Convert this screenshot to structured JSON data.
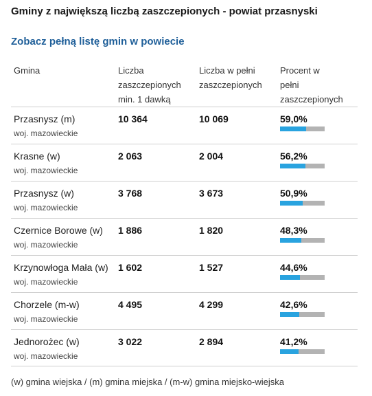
{
  "title": "Gminy z największą liczbą zaszczepionych - powiat przasnyski",
  "link_text": "Zobacz pełną listę gmin w powiecie",
  "columns": {
    "gmina": "Gmina",
    "dose1": [
      "Liczba",
      "zaszczepionych",
      "min. 1 dawką"
    ],
    "full": [
      "Liczba w pełni",
      "zaszczepionych"
    ],
    "percent": [
      "Procent w",
      "pełni",
      "zaszczepionych"
    ]
  },
  "colors": {
    "bar_fill": "#29a3df",
    "bar_track": "#b3b3b3",
    "link": "#1f5f99"
  },
  "rows": [
    {
      "name": "Przasnysz (m)",
      "woj": "woj. mazowieckie",
      "dose1": "10 364",
      "full": "10 069",
      "percent": "59,0%",
      "fraction": 0.59
    },
    {
      "name": "Krasne (w)",
      "woj": "woj. mazowieckie",
      "dose1": "2 063",
      "full": "2 004",
      "percent": "56,2%",
      "fraction": 0.562
    },
    {
      "name": "Przasnysz (w)",
      "woj": "woj. mazowieckie",
      "dose1": "3 768",
      "full": "3 673",
      "percent": "50,9%",
      "fraction": 0.509
    },
    {
      "name": "Czernice Borowe (w)",
      "woj": "woj. mazowieckie",
      "dose1": "1 886",
      "full": "1 820",
      "percent": "48,3%",
      "fraction": 0.483
    },
    {
      "name": "Krzynowłoga Mała (w)",
      "woj": "woj. mazowieckie",
      "dose1": "1 602",
      "full": "1 527",
      "percent": "44,6%",
      "fraction": 0.446
    },
    {
      "name": "Chorzele (m-w)",
      "woj": "woj. mazowieckie",
      "dose1": "4 495",
      "full": "4 299",
      "percent": "42,6%",
      "fraction": 0.426
    },
    {
      "name": "Jednorożec (w)",
      "woj": "woj. mazowieckie",
      "dose1": "3 022",
      "full": "2 894",
      "percent": "41,2%",
      "fraction": 0.412
    }
  ],
  "footnote": "(w) gmina wiejska / (m) gmina miejska / (m-w) gmina miejsko-wiejska"
}
